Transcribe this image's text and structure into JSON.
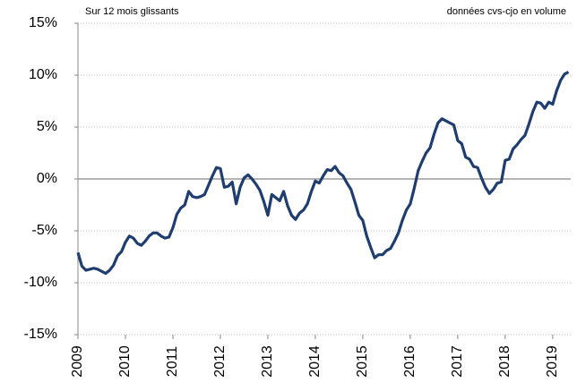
{
  "chart_data": {
    "type": "line",
    "annotations": [
      "Sur 12 mois glissants",
      "données cvs-cjo en volume"
    ],
    "x": [
      2009,
      2009.083,
      2009.167,
      2009.25,
      2009.333,
      2009.417,
      2009.5,
      2009.583,
      2009.667,
      2009.75,
      2009.833,
      2009.917,
      2010,
      2010.083,
      2010.167,
      2010.25,
      2010.333,
      2010.417,
      2010.5,
      2010.583,
      2010.667,
      2010.75,
      2010.833,
      2010.917,
      2011,
      2011.083,
      2011.167,
      2011.25,
      2011.333,
      2011.417,
      2011.5,
      2011.583,
      2011.667,
      2011.75,
      2011.833,
      2011.917,
      2012,
      2012.083,
      2012.167,
      2012.25,
      2012.333,
      2012.417,
      2012.5,
      2012.583,
      2012.667,
      2012.75,
      2012.833,
      2012.917,
      2013,
      2013.083,
      2013.167,
      2013.25,
      2013.333,
      2013.417,
      2013.5,
      2013.583,
      2013.667,
      2013.75,
      2013.833,
      2013.917,
      2014,
      2014.083,
      2014.167,
      2014.25,
      2014.333,
      2014.417,
      2014.5,
      2014.583,
      2014.667,
      2014.75,
      2014.833,
      2014.917,
      2015,
      2015.083,
      2015.167,
      2015.25,
      2015.333,
      2015.417,
      2015.5,
      2015.583,
      2015.667,
      2015.75,
      2015.833,
      2015.917,
      2016,
      2016.083,
      2016.167,
      2016.25,
      2016.333,
      2016.417,
      2016.5,
      2016.583,
      2016.667,
      2016.75,
      2016.833,
      2016.917,
      2017,
      2017.083,
      2017.167,
      2017.25,
      2017.333,
      2017.417,
      2017.5,
      2017.583,
      2017.667,
      2017.75,
      2017.833,
      2017.917,
      2018,
      2018.083,
      2018.167,
      2018.25,
      2018.333,
      2018.417,
      2018.5,
      2018.583,
      2018.667,
      2018.75,
      2018.833,
      2018.917,
      2019,
      2019.083,
      2019.167,
      2019.25,
      2019.333
    ],
    "series": [
      {
        "color": "#1f3d6e",
        "values": [
          -7.1,
          -8.4,
          -8.8,
          -8.7,
          -8.6,
          -8.7,
          -8.9,
          -9.1,
          -8.8,
          -8.3,
          -7.4,
          -7.0,
          -6.1,
          -5.5,
          -5.7,
          -6.2,
          -6.4,
          -6.0,
          -5.5,
          -5.2,
          -5.2,
          -5.5,
          -5.7,
          -5.6,
          -4.7,
          -3.4,
          -2.8,
          -2.5,
          -1.2,
          -1.7,
          -1.8,
          -1.7,
          -1.5,
          -0.6,
          0.3,
          1.1,
          1.0,
          -0.8,
          -0.7,
          -0.3,
          -2.4,
          -0.8,
          0.1,
          0.4,
          0.0,
          -0.5,
          -1.1,
          -2.2,
          -3.5,
          -1.5,
          -1.8,
          -2.1,
          -1.2,
          -2.6,
          -3.5,
          -3.9,
          -3.3,
          -3.0,
          -2.4,
          -1.2,
          -0.2,
          -0.4,
          0.3,
          0.9,
          0.8,
          1.2,
          0.6,
          0.3,
          -0.4,
          -1.0,
          -2.2,
          -3.5,
          -4.0,
          -5.5,
          -6.6,
          -7.6,
          -7.3,
          -7.3,
          -6.9,
          -6.7,
          -6.0,
          -5.2,
          -4.0,
          -3.0,
          -2.4,
          -0.9,
          0.8,
          1.7,
          2.5,
          3.0,
          4.3,
          5.4,
          5.8,
          5.6,
          5.4,
          5.2,
          3.7,
          3.4,
          2.1,
          1.9,
          1.2,
          1.1,
          0.1,
          -0.8,
          -1.4,
          -1.0,
          -0.4,
          -0.3,
          1.8,
          1.9,
          2.9,
          3.3,
          3.8,
          4.2,
          5.3,
          6.5,
          7.4,
          7.3,
          6.8,
          7.4,
          7.2,
          8.5,
          9.5,
          10.1,
          10.3
        ]
      }
    ],
    "xlim": [
      2009,
      2019.38
    ],
    "xticks": [
      2009,
      2010,
      2011,
      2012,
      2013,
      2014,
      2015,
      2016,
      2017,
      2018,
      2019
    ],
    "ylim": [
      -15,
      15
    ],
    "yticks": [
      {
        "value": 15,
        "label": "15%"
      },
      {
        "value": 10,
        "label": "10%"
      },
      {
        "value": 5,
        "label": "5%"
      },
      {
        "value": 0,
        "label": "0%"
      },
      {
        "value": -5,
        "label": "-5%"
      },
      {
        "value": -10,
        "label": "-10%"
      },
      {
        "value": -15,
        "label": "-15%"
      }
    ],
    "grid": true
  }
}
